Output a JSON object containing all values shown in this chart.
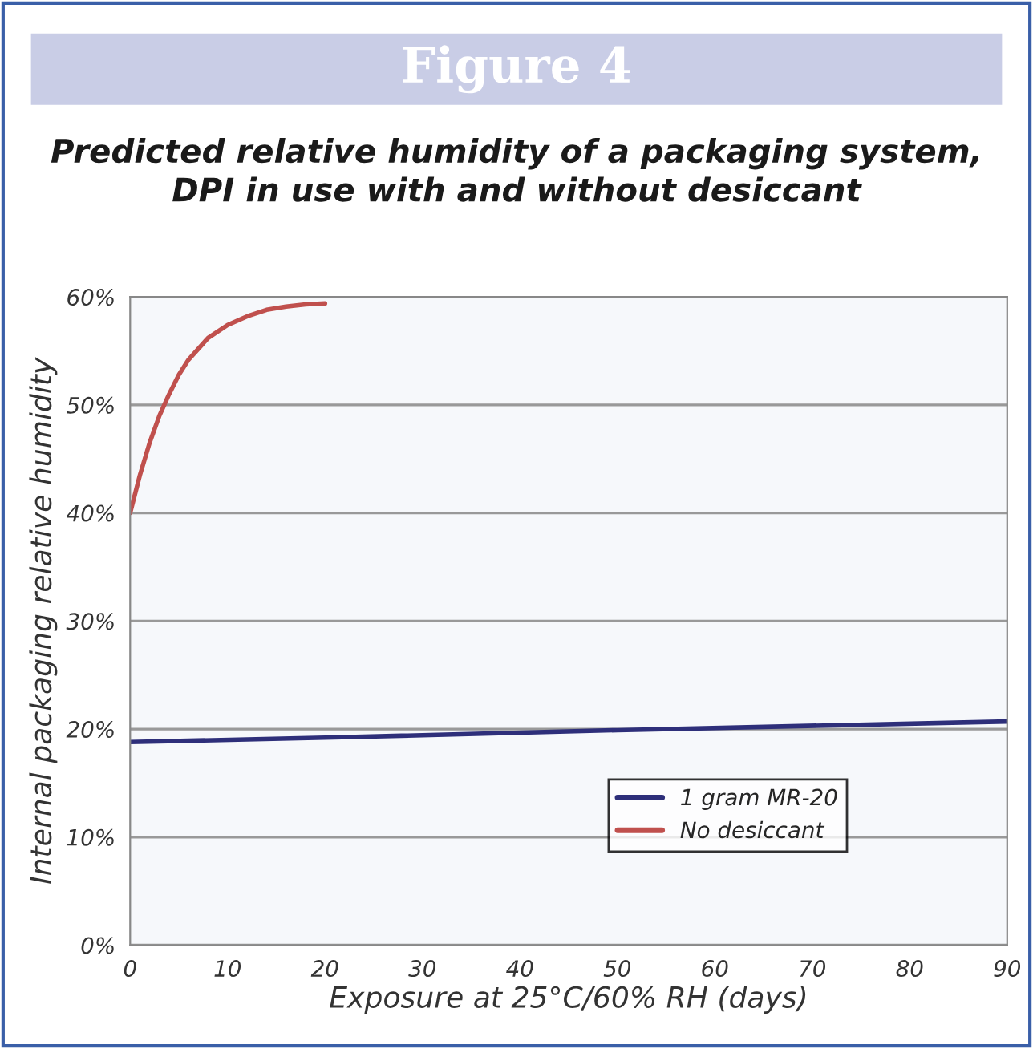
{
  "chart_data": {
    "type": "line",
    "title": "Figure 4",
    "subtitle": "Predicted relative humidity of a packaging system,\nDPI in use with and without desiccant",
    "xlabel": "Exposure at 25°C/60% RH (days)",
    "ylabel": "Internal packaging relative humidity",
    "series": [
      {
        "name": "1 gram MR-20",
        "color": "#2e2f7a",
        "x": [
          0,
          20,
          50,
          90
        ],
        "values": [
          18.8,
          19.2,
          19.9,
          20.7
        ]
      },
      {
        "name": "No desiccant",
        "color": "#c0504d",
        "x": [
          0,
          1,
          2,
          3,
          4,
          5,
          6,
          8,
          10,
          12,
          14,
          16,
          18,
          20
        ],
        "values": [
          40,
          43.5,
          46.5,
          49,
          51,
          52.8,
          54.2,
          56.2,
          57.4,
          58.2,
          58.8,
          59.1,
          59.3,
          59.4
        ]
      }
    ],
    "xlim": [
      0,
      90
    ],
    "xticks": [
      0,
      10,
      20,
      30,
      40,
      50,
      60,
      70,
      80,
      90
    ],
    "ylim": [
      0,
      60
    ],
    "yticks": [
      {
        "value": 0,
        "label": "0%"
      },
      {
        "value": 10,
        "label": "10%"
      },
      {
        "value": 20,
        "label": "20%"
      },
      {
        "value": 30,
        "label": "30%"
      },
      {
        "value": 40,
        "label": "40%"
      },
      {
        "value": 50,
        "label": "50%"
      },
      {
        "value": 60,
        "label": "60%"
      }
    ],
    "grid": "y",
    "legend": "bottom right",
    "marker": "none",
    "line_style": "solid"
  }
}
